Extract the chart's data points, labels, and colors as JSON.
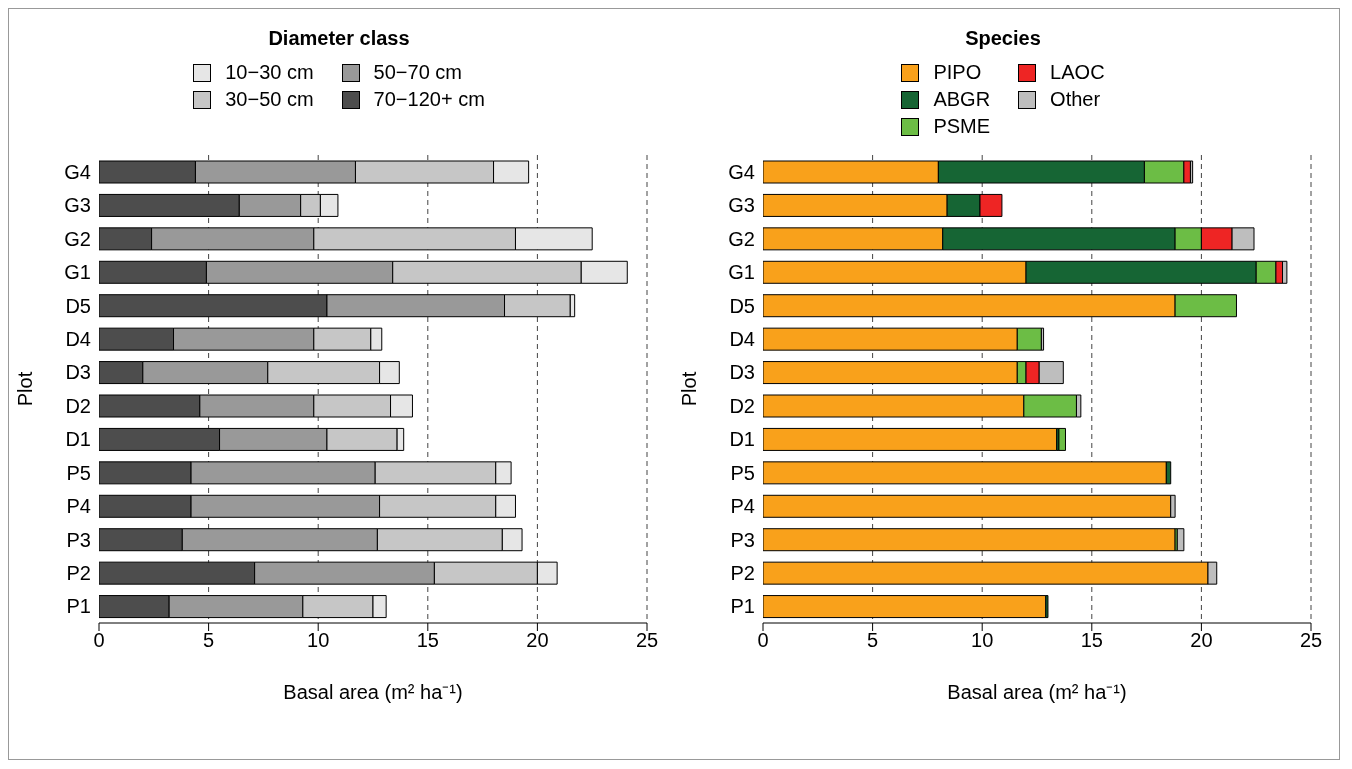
{
  "chart_data": [
    {
      "type": "bar",
      "orientation": "horizontal",
      "stacked": true,
      "title": "Diameter class",
      "xlabel": "Basal area (m² ha⁻¹)",
      "ylabel": "Plot",
      "categories": [
        "G4",
        "G3",
        "G2",
        "G1",
        "D5",
        "D4",
        "D3",
        "D2",
        "D1",
        "P5",
        "P4",
        "P3",
        "P2",
        "P1"
      ],
      "series": [
        {
          "name": "70−120+ cm",
          "color": "#4d4d4d",
          "values": [
            4.4,
            6.4,
            2.4,
            4.9,
            10.4,
            3.4,
            2.0,
            4.6,
            5.5,
            4.2,
            4.2,
            3.8,
            7.1,
            3.2
          ]
        },
        {
          "name": "50−70 cm",
          "color": "#999999",
          "values": [
            7.3,
            2.8,
            7.4,
            8.5,
            8.1,
            6.4,
            5.7,
            5.2,
            4.9,
            8.4,
            8.6,
            8.9,
            8.2,
            6.1
          ]
        },
        {
          "name": "30−50 cm",
          "color": "#c6c6c6",
          "values": [
            6.3,
            0.9,
            9.2,
            8.6,
            3.0,
            2.6,
            5.1,
            3.5,
            3.2,
            5.5,
            5.3,
            5.7,
            4.7,
            3.2
          ]
        },
        {
          "name": "10−30 cm",
          "color": "#e6e6e6",
          "values": [
            1.6,
            0.8,
            3.5,
            2.1,
            0.2,
            0.5,
            0.9,
            1.0,
            0.3,
            0.7,
            0.9,
            0.9,
            0.9,
            0.6
          ]
        }
      ],
      "xlim": [
        0,
        25
      ],
      "xticks": [
        0,
        5,
        10,
        15,
        20,
        25
      ],
      "grid": "x",
      "line_style": "dashed",
      "legend": "top"
    },
    {
      "type": "bar",
      "orientation": "horizontal",
      "stacked": true,
      "title": "Species",
      "xlabel": "Basal area (m² ha⁻¹)",
      "ylabel": "Plot",
      "categories": [
        "G4",
        "G3",
        "G2",
        "G1",
        "D5",
        "D4",
        "D3",
        "D2",
        "D1",
        "P5",
        "P4",
        "P3",
        "P2",
        "P1"
      ],
      "series": [
        {
          "name": "PIPO",
          "color": "#f9a11b",
          "values": [
            8.0,
            8.4,
            8.2,
            12.0,
            18.8,
            11.6,
            11.6,
            11.9,
            13.4,
            18.4,
            18.6,
            18.8,
            20.3,
            12.9
          ]
        },
        {
          "name": "ABGR",
          "color": "#166534",
          "values": [
            9.4,
            1.5,
            10.6,
            10.5,
            0,
            0,
            0,
            0,
            0.1,
            0.2,
            0,
            0,
            0,
            0.1
          ]
        },
        {
          "name": "PSME",
          "color": "#6cbd45",
          "values": [
            1.8,
            0,
            1.2,
            0.9,
            2.8,
            1.1,
            0.4,
            2.4,
            0.3,
            0,
            0,
            0.1,
            0,
            0
          ]
        },
        {
          "name": "LAOC",
          "color": "#ee2524",
          "values": [
            0.3,
            1.0,
            1.4,
            0.3,
            0,
            0,
            0.6,
            0,
            0,
            0,
            0,
            0,
            0,
            0
          ]
        },
        {
          "name": "Other",
          "color": "#bebebe",
          "values": [
            0.1,
            0,
            1.0,
            0.2,
            0,
            0.1,
            1.1,
            0.2,
            0,
            0,
            0.2,
            0.3,
            0.4,
            0
          ]
        }
      ],
      "xlim": [
        0,
        25
      ],
      "xticks": [
        0,
        5,
        10,
        15,
        20,
        25
      ],
      "grid": "x",
      "line_style": "dashed",
      "legend": "top"
    }
  ]
}
